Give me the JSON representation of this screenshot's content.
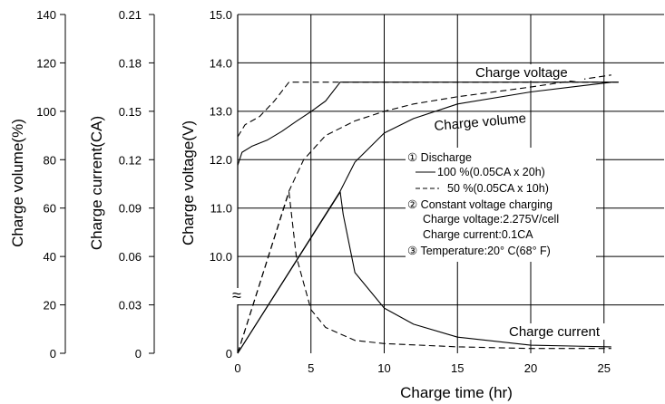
{
  "chart_data": {
    "type": "line",
    "xlabel": "Charge time  (hr)",
    "x_ticks": [
      "0",
      "5",
      "10",
      "15",
      "20",
      "25"
    ],
    "xlim": [
      0,
      30
    ],
    "axes": {
      "volume": {
        "label": "Charge volume(%)",
        "ticks": [
          "0",
          "20",
          "40",
          "60",
          "80",
          "100",
          "120",
          "140"
        ],
        "ylim": [
          0,
          140
        ]
      },
      "current": {
        "label": "Charge current(CA)",
        "ticks": [
          "0",
          "0.03",
          "0.06",
          "0.09",
          "0.12",
          "0.15",
          "0.18",
          "0.21"
        ],
        "ylim": [
          0,
          0.21
        ]
      },
      "voltage": {
        "label": "Charge voltage(V)",
        "ticks": [
          "0",
          "10.0",
          "11.0",
          "12.0",
          "13.0",
          "14.0",
          "15.0"
        ],
        "ylim": [
          9,
          15
        ]
      }
    },
    "axis_break": "≈",
    "grid": true,
    "series": [
      {
        "name": "Charge voltage",
        "style": "solid",
        "axis": "voltage",
        "x": [
          0,
          0.3,
          1,
          2,
          3,
          4,
          5,
          6,
          7.0,
          26
        ],
        "y": [
          11.88,
          12.15,
          12.28,
          12.4,
          12.58,
          12.79,
          12.99,
          13.21,
          13.6,
          13.6
        ]
      },
      {
        "name": "Charge voltage",
        "style": "dashed",
        "axis": "voltage",
        "x": [
          0,
          0.5,
          1.5,
          2.5,
          3.5,
          26
        ],
        "y": [
          12.47,
          12.72,
          12.89,
          13.21,
          13.6,
          13.6
        ]
      },
      {
        "name": "Charge volume",
        "style": "solid",
        "axis": "volume",
        "x": [
          0,
          7.0,
          8,
          10,
          12,
          15,
          20,
          25.5
        ],
        "y": [
          0,
          67,
          79,
          91,
          97,
          103,
          108,
          112
        ]
      },
      {
        "name": "Charge volume",
        "style": "dashed",
        "axis": "volume",
        "x": [
          0,
          3.5,
          4.5,
          6,
          8,
          10,
          12,
          15,
          20,
          25.5
        ],
        "y": [
          0,
          67,
          80,
          90,
          96,
          100,
          103,
          106,
          110,
          115
        ]
      },
      {
        "name": "Charge current",
        "style": "solid",
        "axis": "current",
        "x": [
          0,
          7.0,
          7.2,
          8,
          10,
          12,
          15,
          20,
          25.5
        ],
        "y": [
          0,
          0.1,
          0.086,
          0.05,
          0.028,
          0.018,
          0.01,
          0.005,
          0.004
        ]
      },
      {
        "name": "Charge current",
        "style": "dashed",
        "axis": "current",
        "x": [
          0,
          3.5,
          4,
          5,
          6,
          8,
          10,
          15,
          20,
          25.5
        ],
        "y": [
          0,
          0.1,
          0.06,
          0.027,
          0.016,
          0.008,
          0.006,
          0.004,
          0.003,
          0.003
        ]
      }
    ],
    "curve_labels": [
      "Charge voltage",
      "Charge volume",
      "Charge current"
    ],
    "legend_block": {
      "lines": [
        "① Discharge",
        "100 %(0.05CA x 20h)",
        "50 %(0.05CA x 10h)",
        "② Constant voltage charging",
        "Charge voltage:2.275V/cell",
        "Charge current:0.1CA",
        "③ Temperature:20° C(68° F)"
      ],
      "placement": "center-right"
    }
  }
}
